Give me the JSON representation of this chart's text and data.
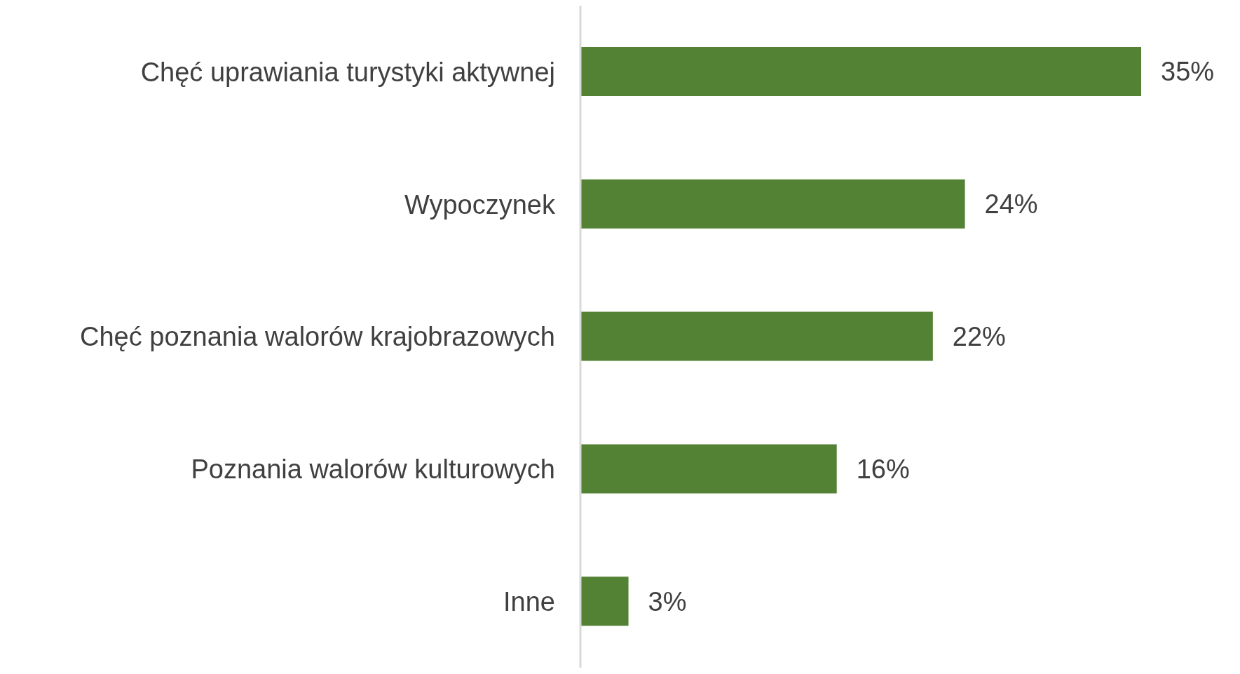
{
  "chart_data": {
    "type": "bar",
    "orientation": "horizontal",
    "categories": [
      "Chęć uprawiania turystyki aktywnej",
      "Wypoczynek",
      "Chęć poznania walorów krajobrazowych",
      "Poznania walorów kulturowych",
      "Inne"
    ],
    "values": [
      35,
      24,
      22,
      16,
      3
    ],
    "value_labels": [
      "35%",
      "24%",
      "22%",
      "16%",
      "3%"
    ],
    "color": "#548235",
    "tick_labels": "y"
  }
}
